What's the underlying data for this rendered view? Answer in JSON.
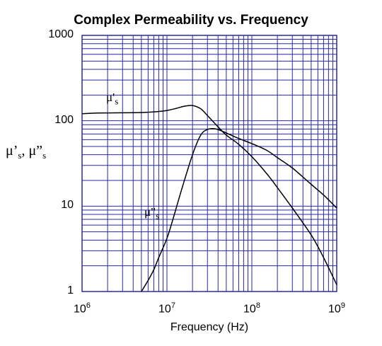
{
  "chart_data": {
    "type": "line",
    "title": "Complex Permeability vs. Frequency",
    "xlabel": "Frequency (Hz)",
    "ylabel": {
      "text": "μ’s, μ”s",
      "mu1": "μ’",
      "sub1": "s",
      "sep": ", ",
      "mu2": "μ”",
      "sub2": "s"
    },
    "x_scale": "log",
    "y_scale": "log",
    "xlim": [
      1000000,
      1000000000
    ],
    "ylim": [
      1,
      1000
    ],
    "grid": true,
    "line_color": "#000000",
    "grid_color": "#2828a8",
    "x_ticks": [
      {
        "value": 1000000,
        "base": "10",
        "exp": "6"
      },
      {
        "value": 10000000,
        "base": "10",
        "exp": "7"
      },
      {
        "value": 100000000,
        "base": "10",
        "exp": "8"
      },
      {
        "value": 1000000000,
        "base": "10",
        "exp": "9"
      }
    ],
    "y_ticks": [
      {
        "value": 1,
        "label": "1"
      },
      {
        "value": 10,
        "label": "10"
      },
      {
        "value": 100,
        "label": "100"
      },
      {
        "value": 1000,
        "label": "1000"
      }
    ],
    "series": [
      {
        "name": "μ'",
        "label_mu": "μ'",
        "label_sub": "s",
        "x": [
          1000000,
          1500000,
          2000000,
          3000000,
          5000000,
          7000000,
          10000000,
          13000000,
          16000000,
          20000000,
          25000000,
          30000000,
          40000000,
          50000000,
          70000000,
          100000000,
          150000000,
          200000000,
          300000000,
          500000000,
          700000000,
          1000000000
        ],
        "y": [
          121,
          123,
          123.5,
          124,
          125,
          127,
          132,
          140,
          148,
          151,
          138,
          115,
          85,
          68,
          53,
          38,
          24,
          16.5,
          9.5,
          4.6,
          2.5,
          1.2
        ]
      },
      {
        "name": "μ''",
        "label_mu": "μ\"",
        "label_sub": "s",
        "x": [
          5000000,
          6000000,
          7000000,
          8000000,
          10000000,
          12000000,
          15000000,
          20000000,
          25000000,
          30000000,
          35000000,
          40000000,
          50000000,
          70000000,
          100000000,
          150000000,
          200000000,
          300000000,
          500000000,
          700000000,
          1000000000
        ],
        "y": [
          1,
          1.35,
          1.8,
          2.5,
          4.2,
          7.5,
          16,
          40,
          68,
          79,
          81,
          79,
          72,
          62,
          54,
          45,
          37,
          28,
          18,
          13.5,
          9.5
        ]
      }
    ]
  }
}
